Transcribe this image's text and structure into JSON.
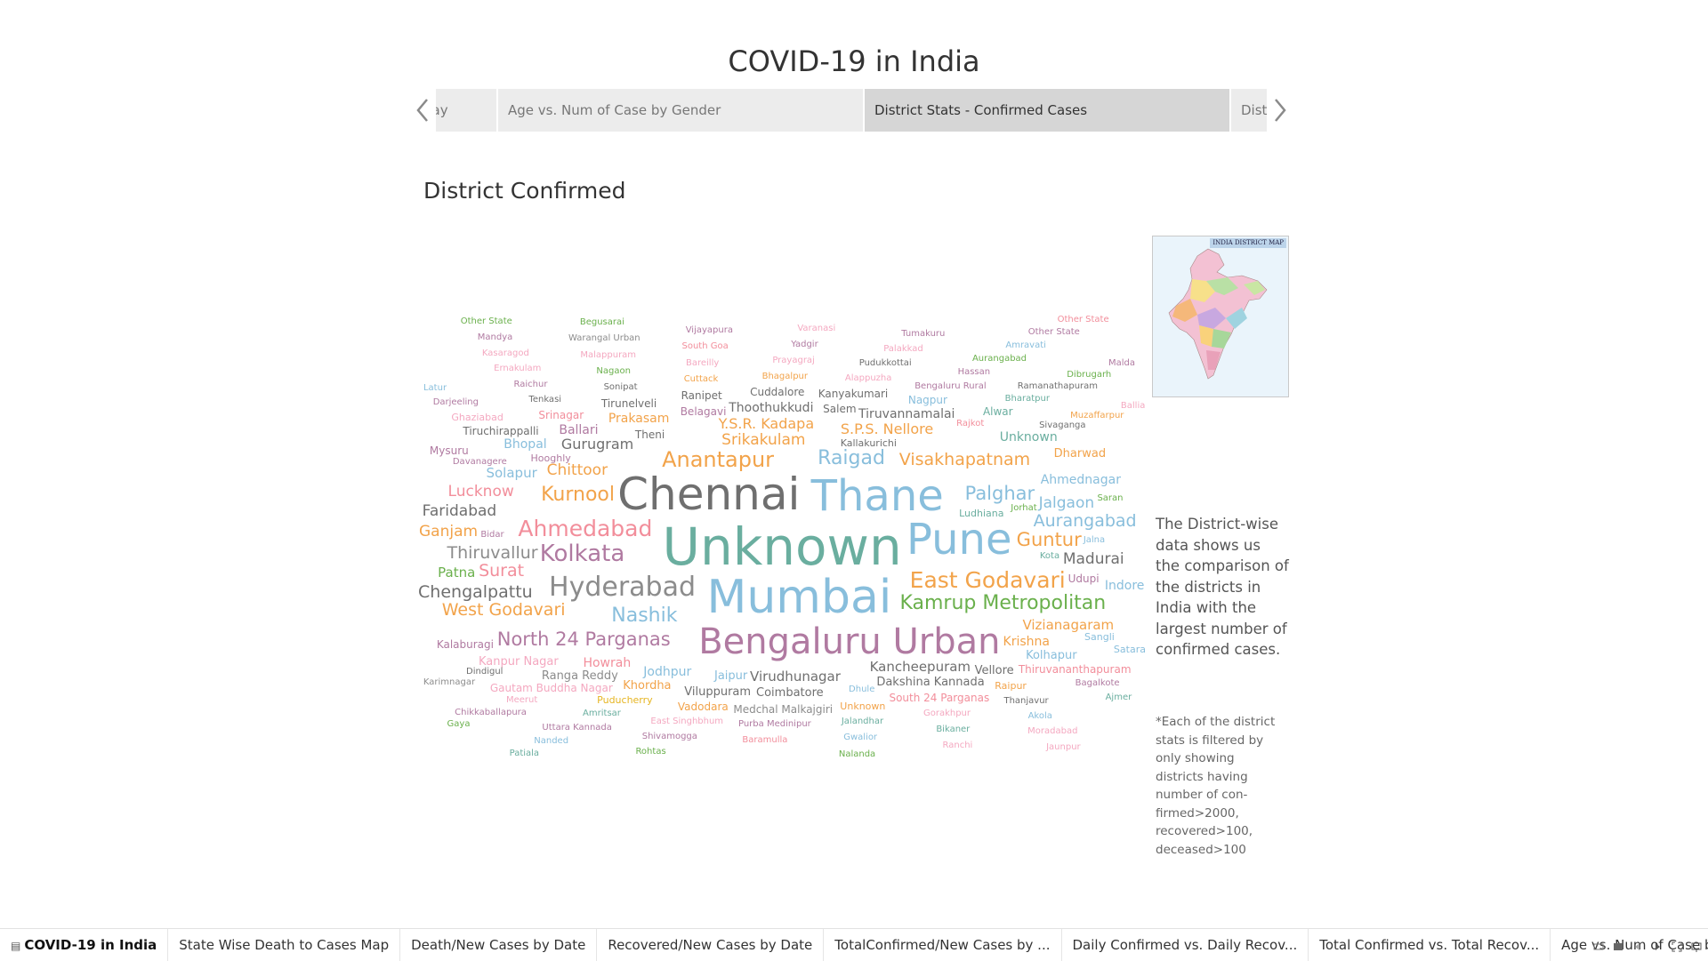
{
  "header": {
    "title": "COVID-19 in India"
  },
  "story_points": [
    {
      "label": "Age vs. Num of Case by Gender",
      "active": false
    },
    {
      "label": "District Stats - Confirmed Cases",
      "active": true
    },
    {
      "label": "District Stats - Recovered Cases",
      "active": false
    }
  ],
  "story_point_prev_fragment": "Day",
  "sheet": {
    "title": "District Confirmed"
  },
  "map": {
    "label": "INDIA DISTRICT MAP"
  },
  "description": "The District-wise data shows us the comparison of the districts in India with the largest number of confirmed cases.",
  "footnote": "*Each of the district stats is filtered by only showing districts having number of con-firmed>2000, recovered>100, deceased>100",
  "colors": {
    "blue": "#88bedc",
    "orange": "#f2a34a",
    "green": "#6ab04c",
    "teal": "#6aae9f",
    "purple": "#b07aa1",
    "pink": "#f28e9b",
    "gray": "#8c8c8c",
    "darkgray": "#6f6f6f",
    "lightpink": "#f4a8c0",
    "yellow": "#e6b522"
  },
  "cloud_words": [
    {
      "t": "Unknown",
      "s": 58,
      "c": "teal"
    },
    {
      "t": "Mumbai",
      "s": 52,
      "c": "blue"
    },
    {
      "t": "Chennai",
      "s": 50,
      "c": "darkgray"
    },
    {
      "t": "Thane",
      "s": 48,
      "c": "blue"
    },
    {
      "t": "Pune",
      "s": 48,
      "c": "blue"
    },
    {
      "t": "Bengaluru Urban",
      "s": 40,
      "c": "purple"
    },
    {
      "t": "Hyderabad",
      "s": 30,
      "c": "gray"
    },
    {
      "t": "Kolkata",
      "s": 26,
      "c": "purple"
    },
    {
      "t": "Anantapur",
      "s": 24,
      "c": "orange"
    },
    {
      "t": "East Godavari",
      "s": 25,
      "c": "orange"
    },
    {
      "t": "Ahmedabad",
      "s": 25,
      "c": "pink"
    },
    {
      "t": "Kamrup Metropolitan",
      "s": 22,
      "c": "green"
    },
    {
      "t": "Nashik",
      "s": 22,
      "c": "blue"
    },
    {
      "t": "Kurnool",
      "s": 22,
      "c": "orange"
    },
    {
      "t": "Raigad",
      "s": 22,
      "c": "blue"
    },
    {
      "t": "Palghar",
      "s": 21,
      "c": "blue"
    },
    {
      "t": "North 24 Parganas",
      "s": 21,
      "c": "purple"
    },
    {
      "t": "Visakhapatnam",
      "s": 19,
      "c": "orange"
    },
    {
      "t": "West Godavari",
      "s": 19,
      "c": "orange"
    },
    {
      "t": "Aurangabad",
      "s": 19,
      "c": "blue"
    },
    {
      "t": "Guntur",
      "s": 21,
      "c": "orange"
    },
    {
      "t": "Chengalpattu",
      "s": 19,
      "c": "darkgray"
    },
    {
      "t": "Thiruvallur",
      "s": 19,
      "c": "gray"
    },
    {
      "t": "Surat",
      "s": 19,
      "c": "pink"
    },
    {
      "t": "Chittoor",
      "s": 17,
      "c": "orange"
    },
    {
      "t": "Srikakulam",
      "s": 17,
      "c": "orange"
    },
    {
      "t": "Madurai",
      "s": 17,
      "c": "darkgray"
    },
    {
      "t": "Jalgaon",
      "s": 17,
      "c": "blue"
    },
    {
      "t": "Faridabad",
      "s": 17,
      "c": "darkgray"
    },
    {
      "t": "Lucknow",
      "s": 17,
      "c": "pink"
    },
    {
      "t": "Ganjam",
      "s": 17,
      "c": "orange"
    },
    {
      "t": "Gurugram",
      "s": 16,
      "c": "darkgray"
    },
    {
      "t": "Vizianagaram",
      "s": 15,
      "c": "orange"
    },
    {
      "t": "Y.S.R. Kadapa",
      "s": 16,
      "c": "orange"
    },
    {
      "t": "S.P.S. Nellore",
      "s": 16,
      "c": "orange"
    },
    {
      "t": "Kancheepuram",
      "s": 15,
      "c": "darkgray"
    },
    {
      "t": "Virudhunagar",
      "s": 15,
      "c": "darkgray"
    },
    {
      "t": "Ahmednagar",
      "s": 14,
      "c": "blue"
    },
    {
      "t": "Krishna",
      "s": 14,
      "c": "orange"
    },
    {
      "t": "Dakshina Kannada",
      "s": 13,
      "c": "darkgray"
    },
    {
      "t": "Indore",
      "s": 14,
      "c": "blue"
    },
    {
      "t": "Jodhpur",
      "s": 14,
      "c": "blue"
    },
    {
      "t": "Patna",
      "s": 15,
      "c": "green"
    },
    {
      "t": "Solapur",
      "s": 15,
      "c": "blue"
    },
    {
      "t": "Howrah",
      "s": 14,
      "c": "pink"
    },
    {
      "t": "Dharwad",
      "s": 13,
      "c": "orange"
    },
    {
      "t": "Kolhapur",
      "s": 13,
      "c": "blue"
    },
    {
      "t": "Bhopal",
      "s": 14,
      "c": "blue"
    },
    {
      "t": "Ballari",
      "s": 14,
      "c": "purple"
    },
    {
      "t": "Thoothukkudi",
      "s": 14,
      "c": "darkgray"
    },
    {
      "t": "Tiruvannamalai",
      "s": 14,
      "c": "darkgray"
    },
    {
      "t": "Coimbatore",
      "s": 13,
      "c": "darkgray"
    },
    {
      "t": "Viluppuram",
      "s": 13,
      "c": "darkgray"
    },
    {
      "t": "Prakasam",
      "s": 14,
      "c": "orange"
    },
    {
      "t": "Khordha",
      "s": 13,
      "c": "orange"
    },
    {
      "t": "Jaipur",
      "s": 13,
      "c": "blue"
    },
    {
      "t": "Kalaburagi",
      "s": 12,
      "c": "purple"
    },
    {
      "t": "Vellore",
      "s": 13,
      "c": "darkgray"
    },
    {
      "t": "Ranga Reddy",
      "s": 13,
      "c": "gray"
    },
    {
      "t": "Belagavi",
      "s": 12,
      "c": "purple"
    },
    {
      "t": "Tiruchirappalli",
      "s": 12,
      "c": "darkgray"
    },
    {
      "t": "Ludhiana",
      "s": 11,
      "c": "teal"
    },
    {
      "t": "Mysuru",
      "s": 12,
      "c": "purple"
    },
    {
      "t": "Srinagar",
      "s": 12,
      "c": "pink"
    },
    {
      "t": "Tirunelveli",
      "s": 12,
      "c": "darkgray"
    },
    {
      "t": "Udupi",
      "s": 12,
      "c": "purple"
    },
    {
      "t": "Ranipet",
      "s": 12,
      "c": "darkgray"
    },
    {
      "t": "Cuddalore",
      "s": 12,
      "c": "darkgray"
    },
    {
      "t": "Kanyakumari",
      "s": 12,
      "c": "darkgray"
    },
    {
      "t": "Thiruvananthapuram",
      "s": 12,
      "c": "pink"
    },
    {
      "t": "Kanpur Nagar",
      "s": 13,
      "c": "lightpink"
    },
    {
      "t": "South 24 Parganas",
      "s": 12,
      "c": "pink"
    },
    {
      "t": "Salem",
      "s": 12,
      "c": "darkgray"
    },
    {
      "t": "Theni",
      "s": 12,
      "c": "darkgray"
    },
    {
      "t": "Nagpur",
      "s": 12,
      "c": "blue"
    },
    {
      "t": "Alwar",
      "s": 12,
      "c": "teal"
    },
    {
      "t": "Medchal Malkajgiri",
      "s": 12,
      "c": "gray"
    },
    {
      "t": "Gautam Buddha Nagar",
      "s": 12,
      "c": "lightpink"
    },
    {
      "t": "Vadodara",
      "s": 12,
      "c": "orange"
    },
    {
      "t": "Kallakurichi",
      "s": 11,
      "c": "darkgray"
    },
    {
      "t": "Hooghly",
      "s": 11,
      "c": "purple"
    },
    {
      "t": "Sangli",
      "s": 11,
      "c": "blue"
    },
    {
      "t": "Satara",
      "s": 11,
      "c": "blue"
    },
    {
      "t": "Puducherry",
      "s": 11,
      "c": "yellow"
    },
    {
      "t": "Davanagere",
      "s": 10,
      "c": "purple"
    },
    {
      "t": "Sivaganga",
      "s": 10,
      "c": "darkgray"
    },
    {
      "t": "Dindigul",
      "s": 10,
      "c": "darkgray"
    },
    {
      "t": "Tenkasi",
      "s": 10,
      "c": "darkgray"
    },
    {
      "t": "Sonipat",
      "s": 10,
      "c": "darkgray"
    },
    {
      "t": "Cuttack",
      "s": 10,
      "c": "orange"
    },
    {
      "t": "Bhagalpur",
      "s": 10,
      "c": "orange"
    },
    {
      "t": "Alappuzha",
      "s": 10,
      "c": "lightpink"
    },
    {
      "t": "Bengaluru Rural",
      "s": 10,
      "c": "purple"
    },
    {
      "t": "Ghaziabad",
      "s": 11,
      "c": "lightpink"
    },
    {
      "t": "Rajkot",
      "s": 10,
      "c": "pink"
    },
    {
      "t": "Bharatpur",
      "s": 10,
      "c": "teal"
    },
    {
      "t": "Muzaffarpur",
      "s": 10,
      "c": "orange"
    },
    {
      "t": "Bagalkote",
      "s": 10,
      "c": "purple"
    },
    {
      "t": "Thanjavur",
      "s": 10,
      "c": "darkgray"
    },
    {
      "t": "Gorakhpur",
      "s": 10,
      "c": "lightpink"
    },
    {
      "t": "Jalandhar",
      "s": 10,
      "c": "teal"
    },
    {
      "t": "Purba Medinipur",
      "s": 10,
      "c": "purple"
    },
    {
      "t": "East Singhbhum",
      "s": 10,
      "c": "lightpink"
    },
    {
      "t": "Jorhat",
      "s": 10,
      "c": "green"
    },
    {
      "t": "Amritsar",
      "s": 10,
      "c": "teal"
    },
    {
      "t": "Saran",
      "s": 10,
      "c": "green"
    },
    {
      "t": "Meerut",
      "s": 10,
      "c": "lightpink"
    },
    {
      "t": "Karimnagar",
      "s": 10,
      "c": "gray"
    },
    {
      "t": "Darjeeling",
      "s": 10,
      "c": "purple"
    },
    {
      "t": "Raichur",
      "s": 10,
      "c": "purple"
    },
    {
      "t": "Nagaon",
      "s": 10,
      "c": "green"
    },
    {
      "t": "Bareilly",
      "s": 10,
      "c": "lightpink"
    },
    {
      "t": "Prayagraj",
      "s": 10,
      "c": "lightpink"
    },
    {
      "t": "Pudukkottai",
      "s": 10,
      "c": "darkgray"
    },
    {
      "t": "Bidar",
      "s": 10,
      "c": "purple"
    },
    {
      "t": "Dhule",
      "s": 10,
      "c": "blue"
    },
    {
      "t": "Kota",
      "s": 10,
      "c": "teal"
    },
    {
      "t": "Hassan",
      "s": 10,
      "c": "purple"
    },
    {
      "t": "Ramanathapuram",
      "s": 10,
      "c": "darkgray"
    },
    {
      "t": "Ballia",
      "s": 10,
      "c": "lightpink"
    },
    {
      "t": "Ajmer",
      "s": 10,
      "c": "teal"
    },
    {
      "t": "Akola",
      "s": 10,
      "c": "blue"
    },
    {
      "t": "Bikaner",
      "s": 10,
      "c": "teal"
    },
    {
      "t": "Jalna",
      "s": 10,
      "c": "blue"
    },
    {
      "t": "Gwalior",
      "s": 10,
      "c": "blue"
    },
    {
      "t": "Baramulla",
      "s": 10,
      "c": "pink"
    },
    {
      "t": "Shivamogga",
      "s": 10,
      "c": "purple"
    },
    {
      "t": "Uttara Kannada",
      "s": 10,
      "c": "purple"
    },
    {
      "t": "Chikkaballapura",
      "s": 10,
      "c": "purple"
    },
    {
      "t": "Ernakulam",
      "s": 10,
      "c": "lightpink"
    },
    {
      "t": "Malappuram",
      "s": 10,
      "c": "lightpink"
    },
    {
      "t": "Latur",
      "s": 10,
      "c": "blue"
    },
    {
      "t": "South Goa",
      "s": 10,
      "c": "pink"
    },
    {
      "t": "Yadgir",
      "s": 10,
      "c": "purple"
    },
    {
      "t": "Palakkad",
      "s": 10,
      "c": "lightpink"
    },
    {
      "t": "Aurangabad",
      "s": 10,
      "c": "green"
    },
    {
      "t": "Dibrugarh",
      "s": 10,
      "c": "green"
    },
    {
      "t": "Moradabad",
      "s": 10,
      "c": "lightpink"
    },
    {
      "t": "Ranchi",
      "s": 10,
      "c": "lightpink"
    },
    {
      "t": "Nalanda",
      "s": 10,
      "c": "green"
    },
    {
      "t": "Rohtas",
      "s": 10,
      "c": "green"
    },
    {
      "t": "Nanded",
      "s": 10,
      "c": "blue"
    },
    {
      "t": "Raipur",
      "s": 11,
      "c": "orange"
    },
    {
      "t": "Gaya",
      "s": 10,
      "c": "green"
    },
    {
      "t": "Kasaragod",
      "s": 10,
      "c": "lightpink"
    },
    {
      "t": "Warangal Urban",
      "s": 10,
      "c": "gray"
    },
    {
      "t": "Vijayapura",
      "s": 10,
      "c": "purple"
    },
    {
      "t": "Varanasi",
      "s": 10,
      "c": "lightpink"
    },
    {
      "t": "Tumakuru",
      "s": 10,
      "c": "purple"
    },
    {
      "t": "Amravati",
      "s": 10,
      "c": "blue"
    },
    {
      "t": "Malda",
      "s": 10,
      "c": "purple"
    },
    {
      "t": "Jaunpur",
      "s": 10,
      "c": "lightpink"
    },
    {
      "t": "Patiala",
      "s": 10,
      "c": "teal"
    },
    {
      "t": "Mandya",
      "s": 10,
      "c": "purple"
    },
    {
      "t": "Begusarai",
      "s": 10,
      "c": "green"
    },
    {
      "t": "Other State",
      "s": 10,
      "c": "purple"
    },
    {
      "t": "Other State",
      "s": 10,
      "c": "green"
    },
    {
      "t": "Other State",
      "s": 10,
      "c": "pink"
    },
    {
      "t": "Other State",
      "s": 10,
      "c": "darkgray"
    },
    {
      "t": "Other State",
      "s": 10,
      "c": "orange"
    },
    {
      "t": "Other State",
      "s": 10,
      "c": "blue"
    },
    {
      "t": "Other State",
      "s": 10,
      "c": "teal"
    },
    {
      "t": "Other State",
      "s": 10,
      "c": "gray"
    },
    {
      "t": "Other State",
      "s": 10,
      "c": "yellow"
    },
    {
      "t": "Other State",
      "s": 10,
      "c": "lightpink"
    },
    {
      "t": "Other State",
      "s": 10,
      "c": "purple"
    },
    {
      "t": "Other State",
      "s": 10,
      "c": "green"
    },
    {
      "t": "Other State",
      "s": 10,
      "c": "blue"
    },
    {
      "t": "Unknown",
      "s": 14,
      "c": "teal"
    },
    {
      "t": "Unknown",
      "s": 11,
      "c": "orange"
    },
    {
      "t": "Unknown",
      "s": 10,
      "c": "purple"
    },
    {
      "t": "Unknown",
      "s": 10,
      "c": "gray"
    },
    {
      "t": "Unknown",
      "s": 10,
      "c": "green"
    },
    {
      "t": "Unknown",
      "s": 10,
      "c": "teal"
    },
    {
      "t": "Unknown",
      "s": 10,
      "c": "lightpink"
    },
    {
      "t": "Unknown",
      "s": 10,
      "c": "darkgray"
    },
    {
      "t": "Unknown",
      "s": 10,
      "c": "blue"
    },
    {
      "t": "Unknown",
      "s": 10,
      "c": "yellow"
    },
    {
      "t": "Unknown",
      "s": 10,
      "c": "pink"
    },
    {
      "t": "Unknown",
      "s": 10,
      "c": "orange"
    },
    {
      "t": "Unknown",
      "s": 10,
      "c": "green"
    },
    {
      "t": "Unknown",
      "s": 10,
      "c": "purple"
    },
    {
      "t": "Unknown",
      "s": 10,
      "c": "teal"
    },
    {
      "t": "Unknown",
      "s": 10,
      "c": "gray"
    },
    {
      "t": "Unknown",
      "s": 10,
      "c": "blue"
    },
    {
      "t": "Unknown",
      "s": 10,
      "c": "darkgray"
    },
    {
      "t": "Unknown",
      "s": 10,
      "c": "pink"
    },
    {
      "t": "Unknown",
      "s": 10,
      "c": "lightpink"
    },
    {
      "t": "Unknown",
      "s": 10,
      "c": "orange"
    },
    {
      "t": "Unknown",
      "s": 10,
      "c": "green"
    },
    {
      "t": "Unknown",
      "s": 10,
      "c": "yellow"
    },
    {
      "t": "Unknown",
      "s": 10,
      "c": "teal"
    },
    {
      "t": "Unknown",
      "s": 10,
      "c": "purple"
    }
  ],
  "sheet_tabs": [
    {
      "label": "COVID-19 in India",
      "active": true,
      "icon": "story-icon"
    },
    {
      "label": "State Wise Death to Cases Map",
      "active": false
    },
    {
      "label": "Death/New Cases by Date",
      "active": false
    },
    {
      "label": "Recovered/New Cases by Date",
      "active": false
    },
    {
      "label": "TotalConfirmed/New Cases by ...",
      "active": false
    },
    {
      "label": "Daily Confirmed vs. Daily Recov...",
      "active": false
    },
    {
      "label": "Total Confirmed vs. Total Recov...",
      "active": false
    },
    {
      "label": "Age vs. Num of Case by Gender",
      "active": false
    }
  ]
}
